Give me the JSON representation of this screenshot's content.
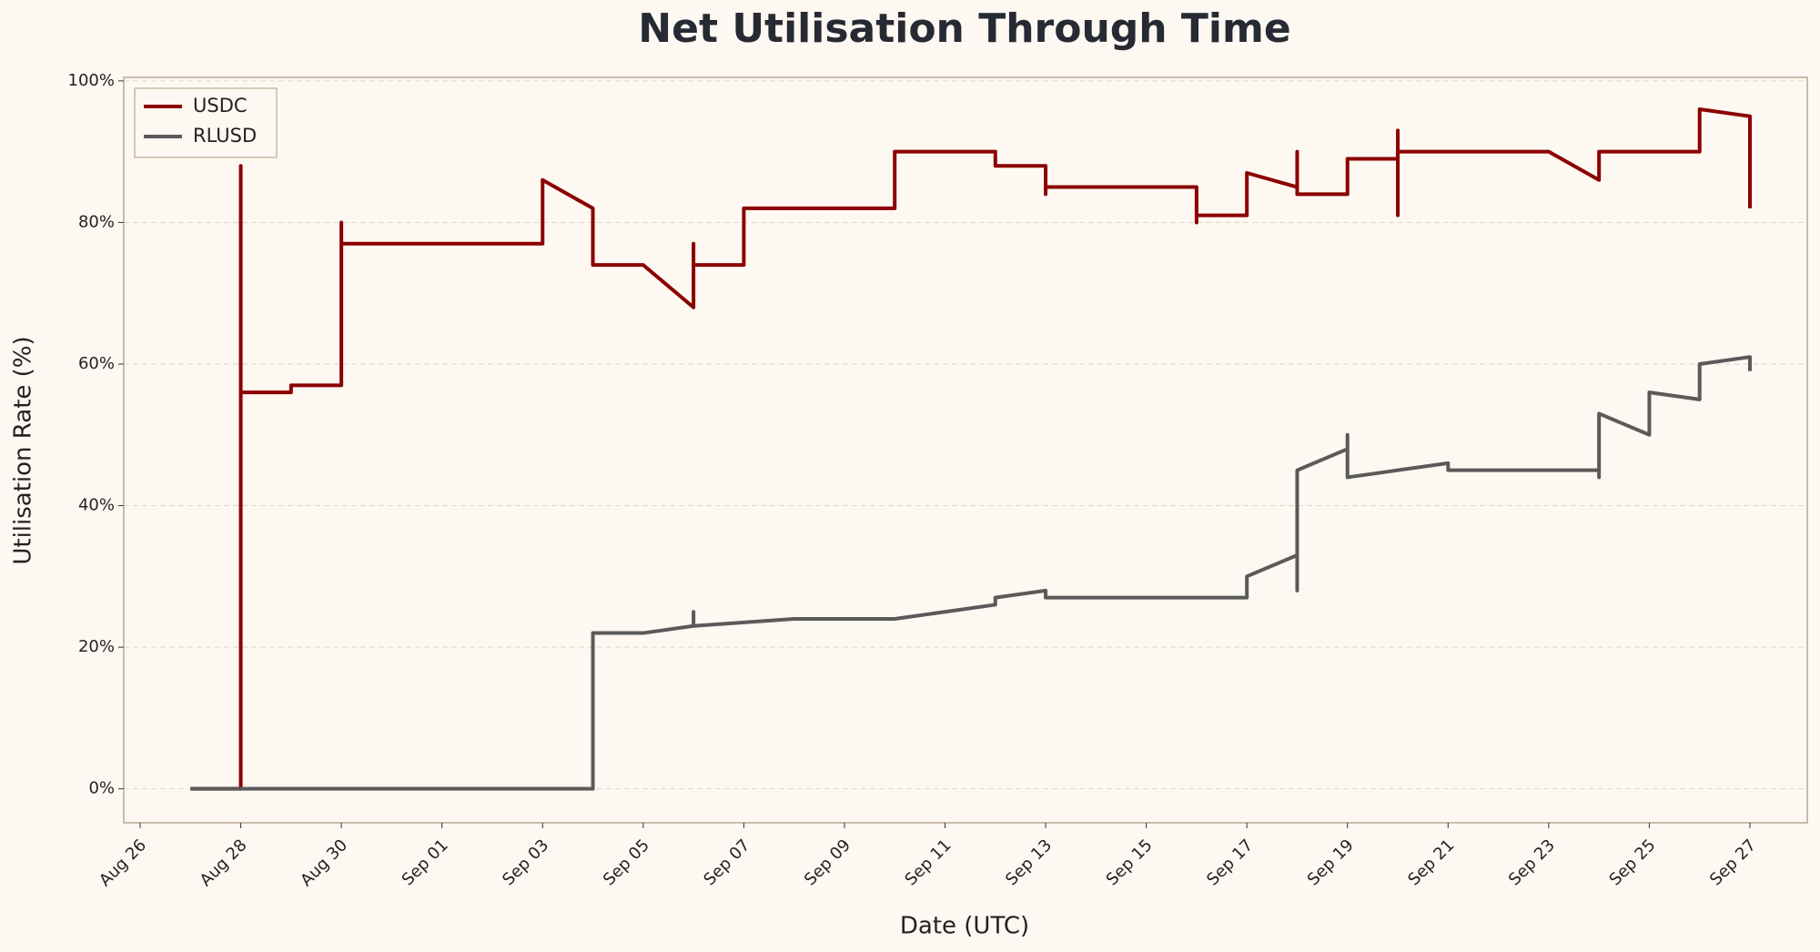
{
  "chart_data": {
    "type": "line",
    "title": "Net Utilisation Through Time",
    "x_label": "Date (UTC)",
    "y_label": "Utilisation Rate (%)",
    "xlim": [
      "Aug 26",
      "Sep 27"
    ],
    "xticks": [
      "Aug 26",
      "Aug 28",
      "Aug 30",
      "Sep 01",
      "Sep 03",
      "Sep 05",
      "Sep 07",
      "Sep 09",
      "Sep 11",
      "Sep 13",
      "Sep 15",
      "Sep 17",
      "Sep 19",
      "Sep 21",
      "Sep 23",
      "Sep 25",
      "Sep 27"
    ],
    "ylim": [
      -4.8,
      100.5
    ],
    "yticks": [
      {
        "value": 0,
        "label": "0%"
      },
      {
        "value": 20,
        "label": "20%"
      },
      {
        "value": 40,
        "label": "40%"
      },
      {
        "value": 60,
        "label": "60%"
      },
      {
        "value": 80,
        "label": "80%"
      },
      {
        "value": 100,
        "label": "100%"
      }
    ],
    "grid": true,
    "legend": "upper left",
    "series": [
      {
        "name": "USDC",
        "color": "#8b0000",
        "x": [
          "Aug 27",
          "Aug 28",
          "Aug 28",
          "Aug 28",
          "Aug 28",
          "Aug 29",
          "Aug 29",
          "Aug 30",
          "Aug 30",
          "Aug 30",
          "Sep 03",
          "Sep 03",
          "Sep 04",
          "Sep 04",
          "Sep 04",
          "Sep 05",
          "Sep 06",
          "Sep 06",
          "Sep 06",
          "Sep 07",
          "Sep 07",
          "Sep 10",
          "Sep 10",
          "Sep 12",
          "Sep 12",
          "Sep 13",
          "Sep 13",
          "Sep 13",
          "Sep 16",
          "Sep 16",
          "Sep 16",
          "Sep 17",
          "Sep 17",
          "Sep 18",
          "Sep 18",
          "Sep 18",
          "Sep 19",
          "Sep 19",
          "Sep 20",
          "Sep 20",
          "Sep 20",
          "Sep 20",
          "Sep 23",
          "Sep 24",
          "Sep 24",
          "Sep 26",
          "Sep 26",
          "Sep 27",
          "Sep 27"
        ],
        "values": [
          0,
          0,
          88,
          40,
          56,
          56,
          57,
          57,
          80,
          77,
          77,
          86,
          82,
          75,
          74,
          74,
          68,
          77,
          74,
          74,
          82,
          82,
          90,
          90,
          88,
          88,
          84,
          85,
          85,
          80,
          81,
          81,
          87,
          85,
          90,
          84,
          84,
          89,
          89,
          93,
          81,
          90,
          90,
          86,
          90,
          90,
          96,
          95,
          82
        ]
      },
      {
        "name": "RLUSD",
        "color": "#5a5a5a",
        "x": [
          "Aug 27",
          "Sep 04",
          "Sep 04",
          "Sep 04",
          "Sep 05",
          "Sep 06",
          "Sep 06",
          "Sep 06",
          "Sep 08",
          "Sep 10",
          "Sep 11",
          "Sep 12",
          "Sep 12",
          "Sep 13",
          "Sep 13",
          "Sep 14",
          "Sep 16",
          "Sep 17",
          "Sep 17",
          "Sep 18",
          "Sep 18",
          "Sep 18",
          "Sep 18",
          "Sep 19",
          "Sep 19",
          "Sep 19",
          "Sep 20",
          "Sep 21",
          "Sep 21",
          "Sep 24",
          "Sep 24",
          "Sep 24",
          "Sep 25",
          "Sep 25",
          "Sep 26",
          "Sep 26",
          "Sep 26",
          "Sep 27",
          "Sep 27"
        ],
        "values": [
          0,
          0,
          16,
          22,
          22,
          23,
          25,
          23,
          24,
          24,
          25,
          26,
          27,
          28,
          27,
          27,
          27,
          27,
          30,
          33,
          28,
          33,
          45,
          48,
          50,
          44,
          45,
          46,
          45,
          45,
          44,
          53,
          50,
          56,
          55,
          57,
          60,
          61,
          59
        ]
      }
    ]
  }
}
